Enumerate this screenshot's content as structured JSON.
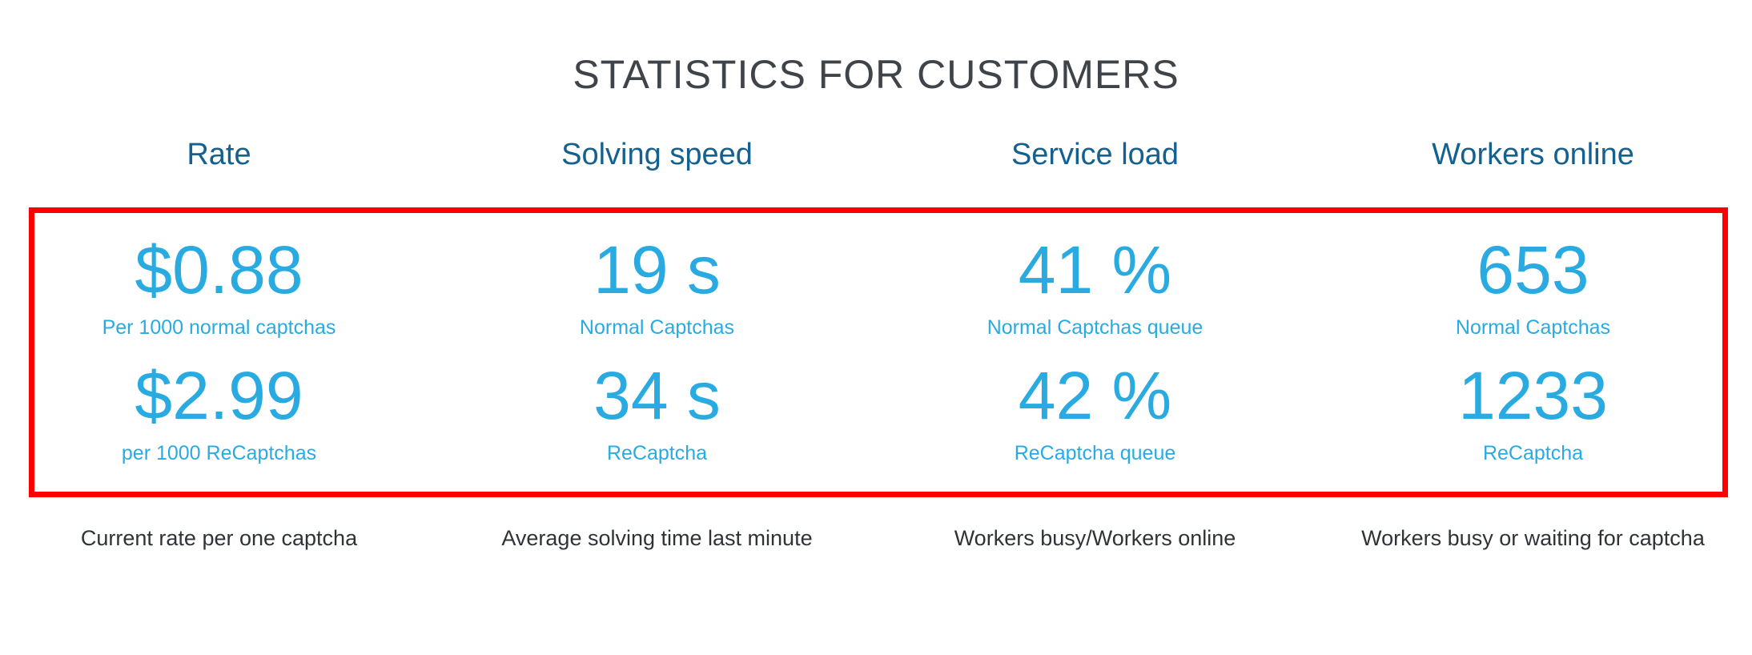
{
  "title": "STATISTICS FOR CUSTOMERS",
  "colors": {
    "accent_blue": "#29abe2",
    "header_blue": "#14608f",
    "title_gray": "#3e4449",
    "highlight_red": "#ff0000"
  },
  "columns": [
    {
      "header": "Rate",
      "stats": [
        {
          "value": "$0.88",
          "label": "Per 1000 normal captchas"
        },
        {
          "value": "$2.99",
          "label": "per 1000 ReCaptchas"
        }
      ],
      "description": "Current rate per one captcha"
    },
    {
      "header": "Solving speed",
      "stats": [
        {
          "value": "19 s",
          "label": "Normal Captchas"
        },
        {
          "value": "34 s",
          "label": "ReCaptcha"
        }
      ],
      "description": "Average solving time last minute"
    },
    {
      "header": "Service load",
      "stats": [
        {
          "value": "41 %",
          "label": "Normal Captchas queue"
        },
        {
          "value": "42 %",
          "label": "ReCaptcha queue"
        }
      ],
      "description": "Workers busy/Workers online"
    },
    {
      "header": "Workers online",
      "stats": [
        {
          "value": "653",
          "label": "Normal Captchas"
        },
        {
          "value": "1233",
          "label": "ReCaptcha"
        }
      ],
      "description": "Workers busy or waiting for captcha"
    }
  ]
}
